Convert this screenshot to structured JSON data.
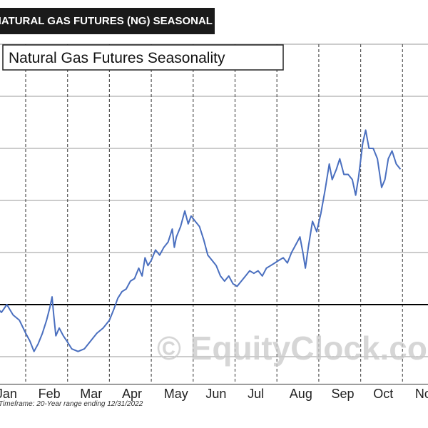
{
  "banner": {
    "text": "NATURAL GAS FUTURES (NG) SEASONAL CHART"
  },
  "watermark": {
    "text": "© EquityClock.com"
  },
  "footnote": "Timeframe: 20-Year range ending 12/31/2022",
  "colors": {
    "line": "#4a6fbf",
    "baseline": "#000000",
    "grid": "#555555",
    "banner_bg": "#1a1a1a"
  },
  "chart_data": {
    "type": "line",
    "title": "Natural Gas Futures Seasonality",
    "xlabel": "",
    "ylabel": "",
    "categories": [
      "Jan",
      "Feb",
      "Mar",
      "Apr",
      "May",
      "Jun",
      "Jul",
      "Aug",
      "Sep",
      "Oct",
      "Nov"
    ],
    "x_range": [
      0,
      11
    ],
    "y_range": [
      -1,
      5
    ],
    "baseline": 0,
    "grid": true,
    "series": [
      {
        "values": [
          [
            0.0,
            0.3
          ],
          [
            0.08,
            0.12
          ],
          [
            0.18,
            -0.1
          ],
          [
            0.3,
            -0.05
          ],
          [
            0.42,
            -0.15
          ],
          [
            0.55,
            0.0
          ],
          [
            0.7,
            -0.2
          ],
          [
            0.85,
            -0.3
          ],
          [
            1.0,
            -0.55
          ],
          [
            1.1,
            -0.7
          ],
          [
            1.2,
            -0.9
          ],
          [
            1.3,
            -0.75
          ],
          [
            1.4,
            -0.55
          ],
          [
            1.5,
            -0.3
          ],
          [
            1.58,
            -0.05
          ],
          [
            1.63,
            0.15
          ],
          [
            1.67,
            -0.2
          ],
          [
            1.72,
            -0.6
          ],
          [
            1.8,
            -0.45
          ],
          [
            1.9,
            -0.6
          ],
          [
            2.0,
            -0.72
          ],
          [
            2.1,
            -0.85
          ],
          [
            2.25,
            -0.9
          ],
          [
            2.4,
            -0.85
          ],
          [
            2.55,
            -0.7
          ],
          [
            2.7,
            -0.55
          ],
          [
            2.85,
            -0.45
          ],
          [
            3.0,
            -0.3
          ],
          [
            3.1,
            -0.1
          ],
          [
            3.2,
            0.12
          ],
          [
            3.3,
            0.25
          ],
          [
            3.4,
            0.3
          ],
          [
            3.5,
            0.45
          ],
          [
            3.6,
            0.5
          ],
          [
            3.7,
            0.7
          ],
          [
            3.78,
            0.55
          ],
          [
            3.85,
            0.9
          ],
          [
            3.92,
            0.75
          ],
          [
            4.0,
            0.85
          ],
          [
            4.1,
            1.05
          ],
          [
            4.2,
            0.95
          ],
          [
            4.3,
            1.1
          ],
          [
            4.4,
            1.2
          ],
          [
            4.5,
            1.45
          ],
          [
            4.55,
            1.1
          ],
          [
            4.6,
            1.3
          ],
          [
            4.7,
            1.5
          ],
          [
            4.8,
            1.8
          ],
          [
            4.88,
            1.55
          ],
          [
            4.95,
            1.7
          ],
          [
            5.05,
            1.6
          ],
          [
            5.15,
            1.5
          ],
          [
            5.25,
            1.25
          ],
          [
            5.35,
            0.95
          ],
          [
            5.45,
            0.85
          ],
          [
            5.55,
            0.75
          ],
          [
            5.65,
            0.55
          ],
          [
            5.75,
            0.45
          ],
          [
            5.85,
            0.55
          ],
          [
            5.95,
            0.4
          ],
          [
            6.05,
            0.35
          ],
          [
            6.15,
            0.45
          ],
          [
            6.25,
            0.55
          ],
          [
            6.35,
            0.65
          ],
          [
            6.45,
            0.6
          ],
          [
            6.55,
            0.65
          ],
          [
            6.65,
            0.55
          ],
          [
            6.75,
            0.7
          ],
          [
            6.85,
            0.75
          ],
          [
            6.95,
            0.8
          ],
          [
            7.05,
            0.85
          ],
          [
            7.15,
            0.9
          ],
          [
            7.25,
            0.8
          ],
          [
            7.35,
            1.0
          ],
          [
            7.45,
            1.15
          ],
          [
            7.55,
            1.3
          ],
          [
            7.62,
            1.0
          ],
          [
            7.68,
            0.7
          ],
          [
            7.75,
            1.1
          ],
          [
            7.85,
            1.6
          ],
          [
            7.95,
            1.4
          ],
          [
            8.05,
            1.75
          ],
          [
            8.15,
            2.2
          ],
          [
            8.25,
            2.7
          ],
          [
            8.32,
            2.4
          ],
          [
            8.42,
            2.6
          ],
          [
            8.5,
            2.8
          ],
          [
            8.6,
            2.5
          ],
          [
            8.7,
            2.5
          ],
          [
            8.8,
            2.4
          ],
          [
            8.88,
            2.1
          ],
          [
            8.95,
            2.45
          ],
          [
            9.05,
            3.1
          ],
          [
            9.12,
            3.35
          ],
          [
            9.2,
            3.0
          ],
          [
            9.3,
            3.0
          ],
          [
            9.4,
            2.8
          ],
          [
            9.5,
            2.25
          ],
          [
            9.58,
            2.4
          ],
          [
            9.66,
            2.8
          ],
          [
            9.75,
            2.95
          ],
          [
            9.85,
            2.7
          ],
          [
            9.95,
            2.6
          ]
        ]
      }
    ]
  }
}
